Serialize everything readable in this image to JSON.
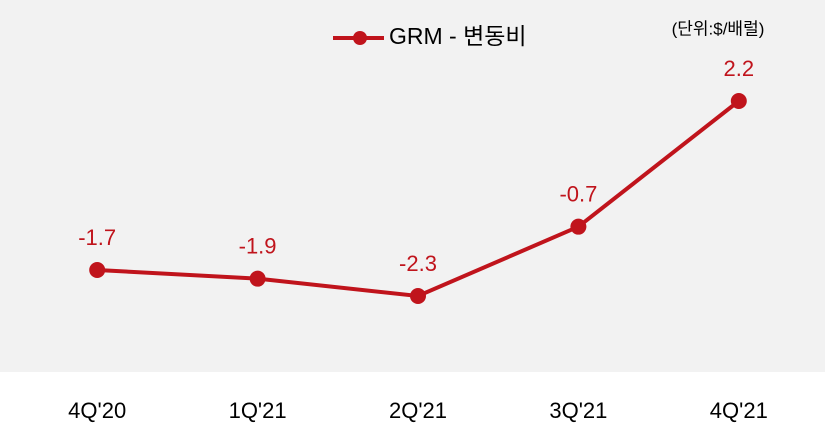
{
  "chart_data": {
    "type": "line",
    "unit_note": "(단위:$/배럴)",
    "categories": [
      "4Q'20",
      "1Q'21",
      "2Q'21",
      "3Q'21",
      "4Q'21"
    ],
    "series": [
      {
        "name": "GRM - 변동비",
        "color": "#c0141c",
        "values": [
          -1.7,
          -1.9,
          -2.3,
          -0.7,
          2.2
        ]
      }
    ],
    "legend": "top"
  }
}
